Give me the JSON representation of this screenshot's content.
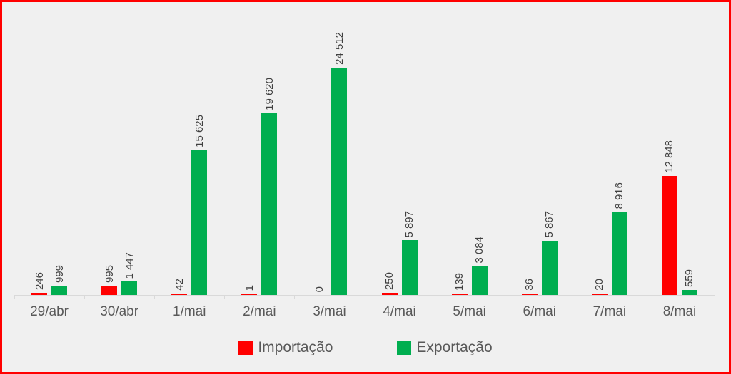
{
  "chart_data": {
    "type": "bar",
    "title": "",
    "xlabel": "",
    "ylabel": "",
    "categories": [
      "29/abr",
      "30/abr",
      "1/mai",
      "2/mai",
      "3/mai",
      "4/mai",
      "5/mai",
      "6/mai",
      "7/mai",
      "8/mai"
    ],
    "series": [
      {
        "name": "Importação",
        "color": "#FF0000",
        "values": [
          246,
          995,
          42,
          1,
          0,
          250,
          139,
          36,
          20,
          12848
        ],
        "labels": [
          "246",
          "995",
          "42",
          "1",
          "0",
          "250",
          "139",
          "36",
          "20",
          "12 848"
        ]
      },
      {
        "name": "Exportação",
        "color": "#00AE50",
        "values": [
          999,
          1447,
          15625,
          19620,
          24512,
          5897,
          3084,
          5867,
          8916,
          559
        ],
        "labels": [
          "999",
          "1 447",
          "15 625",
          "19 620",
          "24 512",
          "5 897",
          "3 084",
          "5 867",
          "8 916",
          "559"
        ]
      }
    ],
    "ylim": [
      0,
      24512
    ],
    "grid": false,
    "data_labels_rotated_90": true,
    "legend_position": "bottom"
  },
  "legend": {
    "items": [
      {
        "label": "Importação",
        "color": "#FF0000"
      },
      {
        "label": "Exportação",
        "color": "#00AE50"
      }
    ]
  },
  "style": {
    "background": "#F0F0F0",
    "frame_border_color": "#FF0000",
    "axis_line_color": "#D9D9D9",
    "axis_text_color": "#595959",
    "data_label_color": "#404040"
  }
}
